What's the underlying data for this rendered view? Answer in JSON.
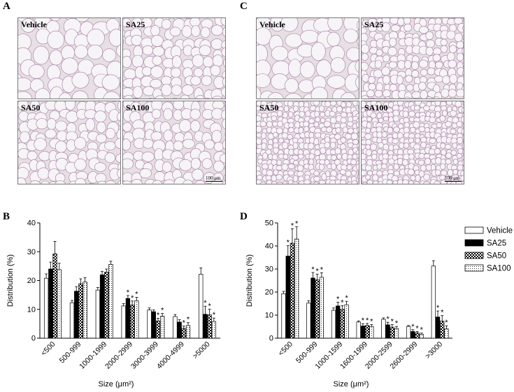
{
  "panels": {
    "A": {
      "letter": "A",
      "images": [
        "Vehicle",
        "SA25",
        "SA50",
        "SA100"
      ],
      "scale": "100 μm"
    },
    "C": {
      "letter": "C",
      "images": [
        "Vehicle",
        "SA25",
        "SA50",
        "SA100"
      ],
      "scale": "100 μm"
    },
    "B": {
      "letter": "B"
    },
    "D": {
      "letter": "D"
    }
  },
  "colors": {
    "tissue_bg": "#e7dfe3",
    "membrane": "#a47aa3",
    "cell_fill": "#f6f4f6",
    "bar_border": "#000000"
  },
  "legend": {
    "items": [
      {
        "label": "Vehicle",
        "pattern": "white"
      },
      {
        "label": "SA25",
        "pattern": "black"
      },
      {
        "label": "SA50",
        "pattern": "checker"
      },
      {
        "label": "SA100",
        "pattern": "dots"
      }
    ]
  },
  "chart_data": [
    {
      "type": "bar",
      "panel": "B",
      "categories": [
        "<500",
        "500-999",
        "1000-1999",
        "2000-2999",
        "3000-3999",
        "4000-4999",
        ">5000"
      ],
      "series": [
        {
          "name": "Vehicle",
          "values": [
            20.8,
            12.3,
            16.7,
            11.2,
            9.8,
            7.5,
            22.2
          ],
          "errors": [
            1.5,
            0.8,
            0.9,
            0.8,
            0.7,
            0.7,
            2.2
          ]
        },
        {
          "name": "SA25",
          "values": [
            24.0,
            16.3,
            22.0,
            13.8,
            9.2,
            5.6,
            8.3
          ],
          "errors": [
            2.4,
            1.6,
            1.2,
            1.0,
            0.6,
            0.8,
            2.8
          ]
        },
        {
          "name": "SA50",
          "values": [
            29.3,
            18.9,
            22.9,
            11.5,
            6.0,
            3.4,
            8.1
          ],
          "errors": [
            4.3,
            1.7,
            1.1,
            1.4,
            0.9,
            0.8,
            2.0
          ]
        },
        {
          "name": "SA100",
          "values": [
            23.8,
            19.5,
            25.6,
            13.0,
            7.6,
            4.4,
            5.8
          ],
          "errors": [
            2.2,
            1.5,
            1.1,
            1.2,
            1.0,
            1.0,
            1.2
          ]
        }
      ],
      "significant": [
        [],
        [
          false,
          false,
          false,
          true,
          false,
          false,
          true
        ],
        [
          false,
          false,
          false,
          true,
          true,
          true,
          true
        ],
        [
          false,
          false,
          false,
          true,
          true,
          true,
          true
        ]
      ],
      "ylabel": "Distribution (%)",
      "xlabel": "Size (μm²)",
      "ylim": [
        0,
        40
      ],
      "yticks": [
        0,
        10,
        20,
        30,
        40
      ],
      "marker": "*"
    },
    {
      "type": "bar",
      "panel": "D",
      "categories": [
        "<500",
        "500-999",
        "1000-1599",
        "1600-1999",
        "2000-2599",
        "2600-2999",
        ">3000"
      ],
      "series": [
        {
          "name": "Vehicle",
          "values": [
            19.3,
            15.2,
            12.1,
            7.0,
            8.2,
            5.1,
            31.3
          ],
          "errors": [
            1.0,
            1.0,
            1.0,
            0.5,
            0.6,
            0.4,
            2.3
          ]
        },
        {
          "name": "SA25",
          "values": [
            35.6,
            26.1,
            14.0,
            5.3,
            5.8,
            2.9,
            9.2
          ],
          "errors": [
            4.5,
            2.4,
            1.6,
            1.0,
            1.1,
            0.8,
            2.6
          ]
        },
        {
          "name": "SA50",
          "values": [
            41.2,
            25.3,
            12.5,
            5.5,
            4.8,
            2.3,
            7.4
          ],
          "errors": [
            6.3,
            2.5,
            1.6,
            0.9,
            1.1,
            0.6,
            2.4
          ]
        },
        {
          "name": "SA100",
          "values": [
            43.0,
            26.4,
            14.5,
            5.1,
            4.2,
            1.7,
            4.0
          ],
          "errors": [
            5.3,
            2.0,
            1.5,
            0.8,
            0.9,
            0.5,
            1.4
          ]
        }
      ],
      "significant": [
        [],
        [
          true,
          true,
          true,
          true,
          true,
          true,
          true
        ],
        [
          true,
          true,
          true,
          true,
          true,
          true,
          true
        ],
        [
          true,
          true,
          true,
          true,
          true,
          true,
          true
        ]
      ],
      "ylabel": "Distribution (%)",
      "xlabel": "Size (μm²)",
      "ylim": [
        0,
        50
      ],
      "yticks": [
        0,
        10,
        20,
        30,
        40,
        50
      ],
      "marker": "*"
    }
  ]
}
